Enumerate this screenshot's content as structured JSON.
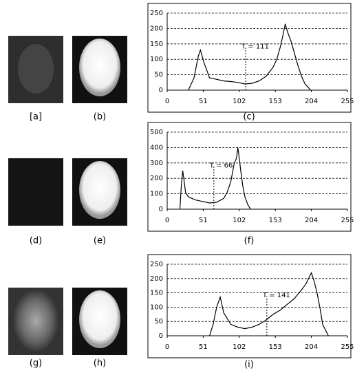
{
  "labels": [
    "[a]",
    "(b)",
    "(d)",
    "(e)",
    "(g)",
    "(h)"
  ],
  "chart_data": [
    {
      "type": "line",
      "caption": "(c)",
      "annotation": "T = 111",
      "threshold": 111,
      "x": [
        30,
        38,
        44,
        47,
        52,
        60,
        70,
        80,
        90,
        100,
        110,
        120,
        130,
        140,
        145,
        150,
        155,
        160,
        163,
        167,
        170,
        175,
        180,
        185,
        190,
        195,
        203
      ],
      "values": [
        0,
        40,
        110,
        130,
        90,
        40,
        35,
        30,
        28,
        25,
        20,
        22,
        30,
        45,
        60,
        75,
        100,
        140,
        170,
        215,
        190,
        160,
        120,
        80,
        45,
        20,
        0
      ],
      "xlim": [
        0,
        255
      ],
      "ylim": [
        0,
        250
      ],
      "xticks": [
        0,
        51,
        102,
        153,
        204,
        255
      ],
      "yticks": [
        0,
        50,
        100,
        150,
        200,
        250
      ],
      "grid": true
    },
    {
      "type": "line",
      "caption": "(f)",
      "annotation": "T = 66",
      "threshold": 66,
      "x": [
        18,
        20,
        22,
        24,
        26,
        30,
        40,
        50,
        60,
        70,
        80,
        85,
        90,
        95,
        98,
        100,
        102,
        104,
        107,
        110,
        114,
        118
      ],
      "values": [
        0,
        150,
        250,
        180,
        110,
        80,
        60,
        50,
        40,
        45,
        70,
        110,
        180,
        300,
        330,
        400,
        330,
        250,
        150,
        80,
        30,
        0
      ],
      "xlim": [
        0,
        255
      ],
      "ylim": [
        0,
        500
      ],
      "xticks": [
        0,
        51,
        102,
        153,
        204,
        255
      ],
      "yticks": [
        0,
        100,
        200,
        300,
        400,
        500
      ],
      "grid": true
    },
    {
      "type": "line",
      "caption": "(i)",
      "annotation": "T = 141",
      "threshold": 141,
      "x": [
        60,
        65,
        70,
        75,
        80,
        90,
        100,
        110,
        120,
        130,
        140,
        150,
        160,
        170,
        180,
        190,
        196,
        200,
        204,
        208,
        212,
        216,
        220,
        228
      ],
      "values": [
        0,
        40,
        100,
        135,
        80,
        40,
        30,
        25,
        30,
        40,
        55,
        75,
        90,
        110,
        130,
        160,
        180,
        200,
        220,
        190,
        150,
        100,
        40,
        0
      ],
      "xlim": [
        0,
        255
      ],
      "ylim": [
        0,
        250
      ],
      "xticks": [
        0,
        51,
        102,
        153,
        204,
        255
      ],
      "yticks": [
        0,
        50,
        100,
        150,
        200,
        250
      ],
      "grid": true
    }
  ]
}
